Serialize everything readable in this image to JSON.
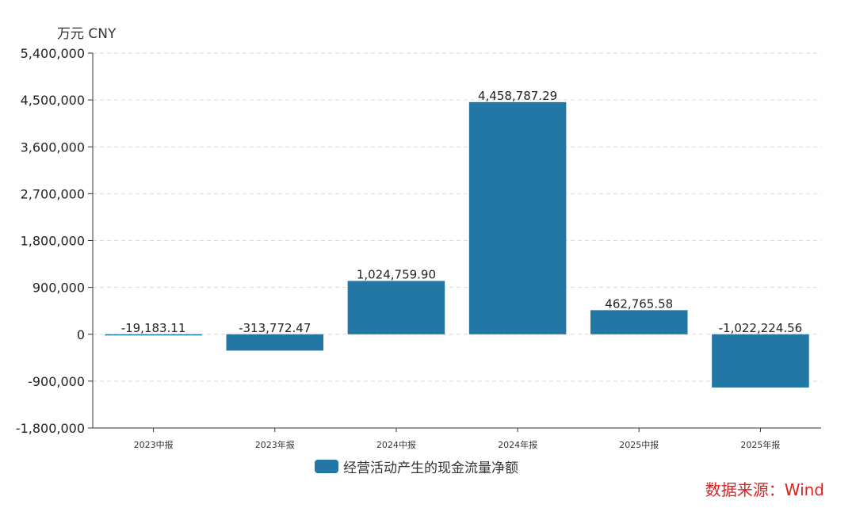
{
  "unit_label": "万元  CNY",
  "source_label": "数据来源：Wind",
  "colors": {
    "bar": "#2277a4",
    "source": "#e02020",
    "grid": "#d9d9d9"
  },
  "chart_data": {
    "type": "bar",
    "categories": [
      "2023中报",
      "2023年报",
      "2024中报",
      "2024年报",
      "2025中报",
      "2025年报"
    ],
    "series": [
      {
        "name": "经营活动产生的现金流量净额",
        "values": [
          -19183.11,
          -313772.47,
          1024759.9,
          4458787.29,
          462765.58,
          -1022224.56
        ]
      }
    ],
    "data_labels": [
      "-19,183.11",
      "-313,772.47",
      "1,024,759.90",
      "4,458,787.29",
      "462,765.58",
      "-1,022,224.56"
    ],
    "yticks": [
      "5,400,000",
      "4,500,000",
      "3,600,000",
      "2,700,000",
      "1,800,000",
      "900,000",
      "0",
      "-900,000",
      "-1,800,000"
    ],
    "ytick_values": [
      5400000,
      4500000,
      3600000,
      2700000,
      1800000,
      900000,
      0,
      -900000,
      -1800000
    ],
    "ylim": [
      -1800000,
      5400000
    ],
    "grid": true,
    "legend_position": "bottom-center"
  }
}
